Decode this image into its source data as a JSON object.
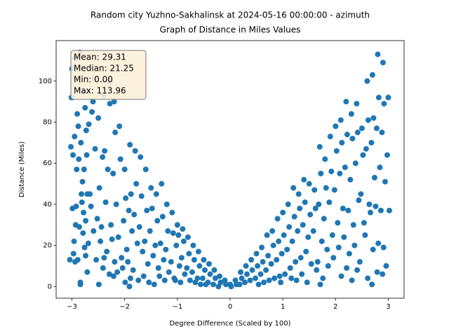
{
  "chart_data": {
    "type": "scatter",
    "title": "Random city Yuzhno-Sakhalinsk at 2024-05-16 00:00:00  - azimuth",
    "subtitle": "Graph of Distance in Miles Values",
    "x_label": "Degree Difference (Scaled by 100)",
    "y_label": "Distance (Miles)",
    "annotation": [
      "Mean: 29.31",
      "Median: 21.25",
      "Min: 0.00",
      "Max: 113.96"
    ],
    "color": "#1f77b4",
    "xlim": [
      -3.3,
      3.3
    ],
    "ylim": [
      -5.7,
      119.7
    ],
    "xticks": [
      {
        "value": -3,
        "label": "−3"
      },
      {
        "value": -2,
        "label": "−2"
      },
      {
        "value": -1,
        "label": "−1"
      },
      0,
      1,
      2,
      3
    ],
    "yticks": [
      0,
      20,
      40,
      60,
      80,
      100
    ],
    "x": [
      -3,
      -2.98,
      -3.02,
      -2.96,
      -3.04,
      -2.99,
      -3.01,
      -2.95,
      -2.93,
      -2.97,
      -2.91,
      -2.99,
      -2.94,
      -2.9,
      -2.88,
      -2.92,
      -2.86,
      -2.94,
      -2.85,
      -2.83,
      -2.87,
      -2.81,
      -2.89,
      -2.84,
      -2.8,
      -2.78,
      -2.82,
      -2.76,
      -2.84,
      -2.75,
      -2.73,
      -2.77,
      -2.71,
      -2.79,
      -2.74,
      -2.7,
      -2.68,
      -2.72,
      -2.66,
      -2.74,
      -2.69,
      -2.71,
      -2.6,
      -2.58,
      -2.62,
      -2.56,
      -2.64,
      -2.59,
      -2.5,
      -2.48,
      -2.52,
      -2.46,
      -2.54,
      -2.49,
      -2.4,
      -2.38,
      -2.42,
      -2.36,
      -2.44,
      -2.39,
      -2.41,
      -2.3,
      -2.28,
      -2.32,
      -2.26,
      -2.34,
      -2.29,
      -2.2,
      -2.18,
      -2.22,
      -2.16,
      -2.24,
      -2.19,
      -2.21,
      -2.1,
      -2.08,
      -2.12,
      -2.06,
      -2.14,
      -2,
      -1.98,
      -2.02,
      -1.96,
      -2.04,
      -1.99,
      -1.9,
      -1.88,
      -1.92,
      -1.86,
      -1.94,
      -1.89,
      -1.91,
      -1.8,
      -1.78,
      -1.82,
      -1.76,
      -1.84,
      -1.7,
      -1.68,
      -1.72,
      -1.66,
      -1.74,
      -1.6,
      -1.58,
      -1.62,
      -1.56,
      -1.64,
      -1.5,
      -1.48,
      -1.52,
      -1.46,
      -1.54,
      -1.4,
      -1.38,
      -1.42,
      -1.36,
      -1.44,
      -1.3,
      -1.28,
      -1.32,
      -1.26,
      -1.34,
      -1.2,
      -1.18,
      -1.22,
      -1.16,
      -1.24,
      -1.1,
      -1.08,
      -1.12,
      -1.06,
      -1,
      -0.98,
      -1.02,
      -0.96,
      -1.04,
      -0.9,
      -0.88,
      -0.92,
      -0.86,
      -0.94,
      -0.8,
      -0.78,
      -0.82,
      -0.76,
      -0.7,
      -0.68,
      -0.72,
      -0.66,
      -0.6,
      -0.58,
      -0.62,
      -0.56,
      -0.5,
      -0.48,
      -0.52,
      -0.46,
      -0.4,
      -0.38,
      -0.42,
      -0.3,
      -0.28,
      -0.32,
      -0.2,
      -0.18,
      -0.22,
      -0.1,
      -0.08,
      0,
      0.02,
      0.1,
      0.12,
      0.2,
      0.22,
      0.18,
      0.3,
      0.32,
      0.28,
      0.4,
      0.42,
      0.38,
      0.5,
      0.52,
      0.48,
      0.54,
      0.6,
      0.62,
      0.58,
      0.64,
      0.7,
      0.72,
      0.68,
      0.74,
      0.8,
      0.82,
      0.78,
      0.84,
      0.9,
      0.92,
      0.88,
      0.94,
      1,
      1.02,
      0.98,
      1.04,
      0.96,
      1.1,
      1.12,
      1.08,
      1.14,
      1.2,
      1.22,
      1.18,
      1.24,
      1.16,
      1.3,
      1.32,
      1.28,
      1.34,
      1.26,
      1.4,
      1.42,
      1.38,
      1.44,
      1.36,
      1.5,
      1.52,
      1.48,
      1.54,
      1.46,
      1.6,
      1.62,
      1.58,
      1.64,
      1.7,
      1.72,
      1.68,
      1.74,
      1.66,
      1.71,
      1.8,
      1.82,
      1.78,
      1.84,
      1.76,
      1.9,
      1.92,
      1.88,
      1.94,
      1.86,
      2,
      2.02,
      1.98,
      2.04,
      1.96,
      2.1,
      2.12,
      2.08,
      2.14,
      2.06,
      2.11,
      2.2,
      2.22,
      2.18,
      2.24,
      2.16,
      2.21,
      2.3,
      2.32,
      2.28,
      2.34,
      2.26,
      2.31,
      2.4,
      2.42,
      2.38,
      2.44,
      2.36,
      2.41,
      2.5,
      2.52,
      2.48,
      2.54,
      2.46,
      2.6,
      2.62,
      2.58,
      2.64,
      2.56,
      2.61,
      2.7,
      2.72,
      2.68,
      2.74,
      2.66,
      2.71,
      2.69,
      2.8,
      2.82,
      2.78,
      2.84,
      2.76,
      2.81,
      2.79,
      2.9,
      2.92,
      2.88,
      2.94,
      2.86,
      2.91,
      2.89,
      3,
      2.98,
      3.02,
      2.96
    ],
    "y": [
      106,
      64,
      68,
      22,
      13,
      38,
      92,
      73,
      30,
      16,
      57,
      92,
      12,
      84,
      78,
      39,
      29,
      111,
      114,
      70,
      62,
      41,
      13,
      1,
      51,
      36,
      45,
      19,
      2,
      87,
      76,
      57,
      45,
      26,
      15,
      95,
      79,
      64,
      45,
      32,
      21,
      7,
      90,
      101,
      85,
      67,
      39,
      27,
      82,
      48,
      33,
      22,
      13,
      1,
      93,
      66,
      63,
      41,
      29,
      14,
      9,
      100,
      89,
      57,
      30,
      17,
      6,
      90,
      75,
      55,
      40,
      23,
      12,
      5,
      78,
      62,
      24,
      14,
      7,
      57,
      43,
      32,
      18,
      9,
      2,
      69,
      45,
      37,
      27,
      12,
      4,
      0,
      66,
      50,
      35,
      21,
      8,
      63,
      44,
      29,
      17,
      3,
      57,
      37,
      22,
      11,
      5,
      48,
      38,
      27,
      15,
      2,
      45,
      32,
      20,
      9,
      1,
      50,
      34,
      21,
      13,
      5,
      40,
      27,
      18,
      7,
      3,
      36,
      26,
      12,
      4,
      30,
      25,
      20,
      10,
      3,
      28,
      22,
      14,
      6,
      2,
      24,
      16,
      9,
      3,
      20,
      13,
      7,
      2,
      17,
      10,
      4,
      1,
      13,
      8,
      4,
      1,
      11,
      6,
      2,
      8,
      4,
      1,
      5,
      2,
      0,
      3,
      1,
      1,
      0,
      3,
      1,
      7,
      4,
      1,
      10,
      6,
      2,
      13,
      8,
      3,
      16,
      10,
      4,
      1,
      19,
      12,
      6,
      2,
      25,
      15,
      8,
      3,
      27,
      20,
      11,
      4,
      33,
      22,
      13,
      5,
      36,
      25,
      16,
      6,
      2,
      40,
      29,
      18,
      9,
      48,
      34,
      22,
      12,
      4,
      45,
      38,
      27,
      14,
      3,
      52,
      41,
      30,
      17,
      6,
      50,
      35,
      24,
      11,
      2,
      47,
      38,
      27,
      8,
      68,
      55,
      40,
      22,
      12,
      1,
      62,
      48,
      33,
      18,
      4,
      73,
      56,
      41,
      25,
      10,
      78,
      66,
      47,
      31,
      14,
      81,
      70,
      55,
      38,
      19,
      5,
      90,
      74,
      58,
      37,
      24,
      9,
      84,
      72,
      52,
      30,
      16,
      3,
      89,
      75,
      60,
      42,
      20,
      8,
      77,
      64,
      45,
      31,
      12,
      100,
      81,
      67,
      40,
      25,
      4,
      103,
      82,
      70,
      53,
      36,
      18,
      1,
      113,
      92,
      77,
      58,
      39,
      21,
      7,
      109,
      89,
      75,
      51,
      37,
      19,
      6,
      92,
      64,
      37,
      10
    ]
  }
}
